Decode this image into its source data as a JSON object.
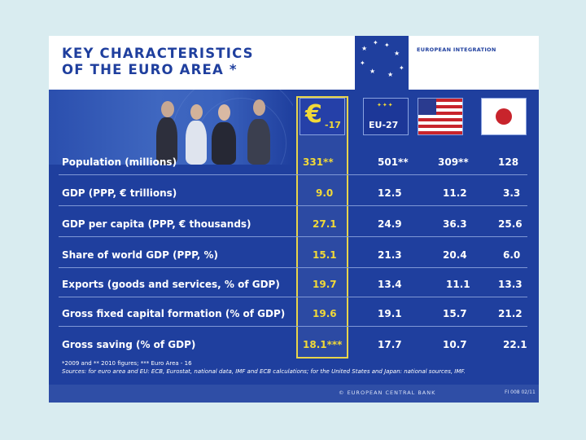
{
  "header": {
    "title_line1": "KEY CHARACTERISTICS",
    "title_line2": "OF THE EURO AREA *",
    "section_label": "EUROPEAN INTEGRATION"
  },
  "columns": {
    "ea_label": "-17",
    "eu_label": "EU-27"
  },
  "table": {
    "rows": [
      {
        "label": "Population (millions)",
        "ea": "331**",
        "eu": "501**",
        "us": "309**",
        "jp": "128"
      },
      {
        "label": "GDP (PPP, € trillions)",
        "ea": "9.0",
        "eu": "12.5",
        "us": "11.2",
        "jp": "3.3"
      },
      {
        "label": "GDP per capita (PPP, € thousands)",
        "ea": "27.1",
        "eu": "24.9",
        "us": "36.3",
        "jp": "25.6"
      },
      {
        "label": "Share of world GDP (PPP, %)",
        "ea": "15.1",
        "eu": "21.3",
        "us": "20.4",
        "jp": "6.0"
      },
      {
        "label": "Exports (goods and services, % of GDP)",
        "ea": "19.7",
        "eu": "13.4",
        "us": "11.1",
        "jp": "13.3"
      },
      {
        "label": "Gross fixed capital formation (% of GDP)",
        "ea": "19.6",
        "eu": "19.1",
        "us": "15.7",
        "jp": "21.2"
      },
      {
        "label": "Gross saving (% of GDP)",
        "ea": "18.1***",
        "eu": "17.7",
        "us": "10.7",
        "jp": "22.1"
      }
    ]
  },
  "footnotes": {
    "line1": "*2009 and ** 2010 figures; *** Euro Area - 16",
    "line2": "Sources: for euro area and EU: ECB, Eurostat, national data, IMF and ECB calculations; for the United States and Japan: national sources, IMF."
  },
  "footer": {
    "brand": "© EUROPEAN CENTRAL BANK",
    "slide_number": "FI 008 02/11"
  },
  "colors": {
    "navy": "#1f3f9e",
    "highlight_yellow": "#f1d938",
    "background": "#d9ecf0"
  },
  "icons": [
    "eu-stars-icon",
    "euro-sign-icon",
    "eu-flag-icon",
    "us-flag-icon",
    "japan-flag-icon"
  ]
}
